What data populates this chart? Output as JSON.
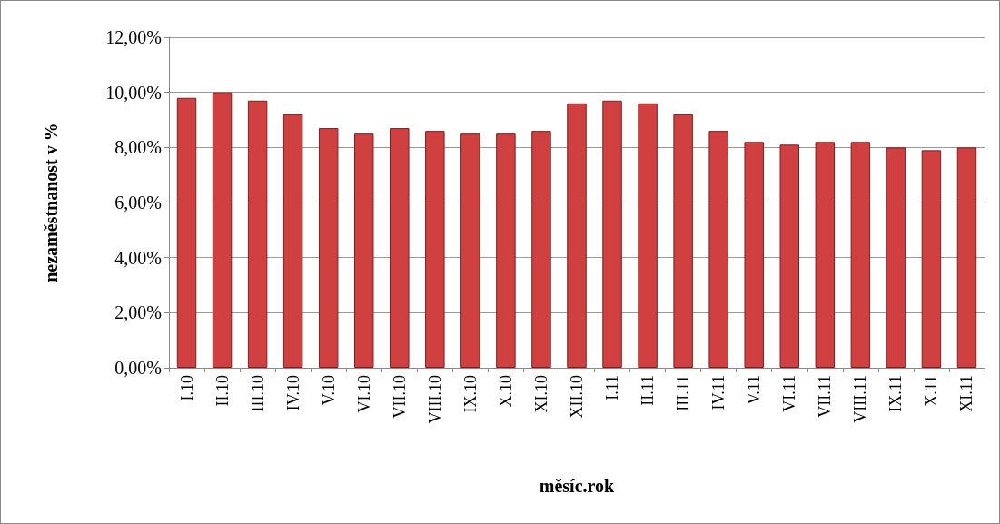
{
  "chart_data": {
    "type": "bar",
    "xlabel": "měsíc.rok",
    "ylabel": "nezaměstnanost v %",
    "categories": [
      "I.10",
      "II.10",
      "III.10",
      "IV.10",
      "V.10",
      "VI.10",
      "VII.10",
      "VIII.10",
      "IX.10",
      "X.10",
      "XI.10",
      "XII.10",
      "I.11",
      "II.11",
      "III.11",
      "IV.11",
      "V.11",
      "VI.11",
      "VII.11",
      "VIII.11",
      "IX.11",
      "X.11",
      "XI.11"
    ],
    "values": [
      9.8,
      10.0,
      9.7,
      9.2,
      8.7,
      8.5,
      8.7,
      8.6,
      8.5,
      8.5,
      8.6,
      9.6,
      9.7,
      9.6,
      9.2,
      8.6,
      8.2,
      8.1,
      8.2,
      8.2,
      8.0,
      7.9,
      8.0
    ],
    "color": "#d04040",
    "ylim": [
      0,
      12
    ],
    "yticks": [
      {
        "value": 0,
        "label": "0,00%"
      },
      {
        "value": 2,
        "label": "2,00%"
      },
      {
        "value": 4,
        "label": "4,00%"
      },
      {
        "value": 6,
        "label": "6,00%"
      },
      {
        "value": 8,
        "label": "8,00%"
      },
      {
        "value": 10,
        "label": "10,00%"
      },
      {
        "value": 12,
        "label": "12,00%"
      }
    ],
    "grid": "y"
  }
}
